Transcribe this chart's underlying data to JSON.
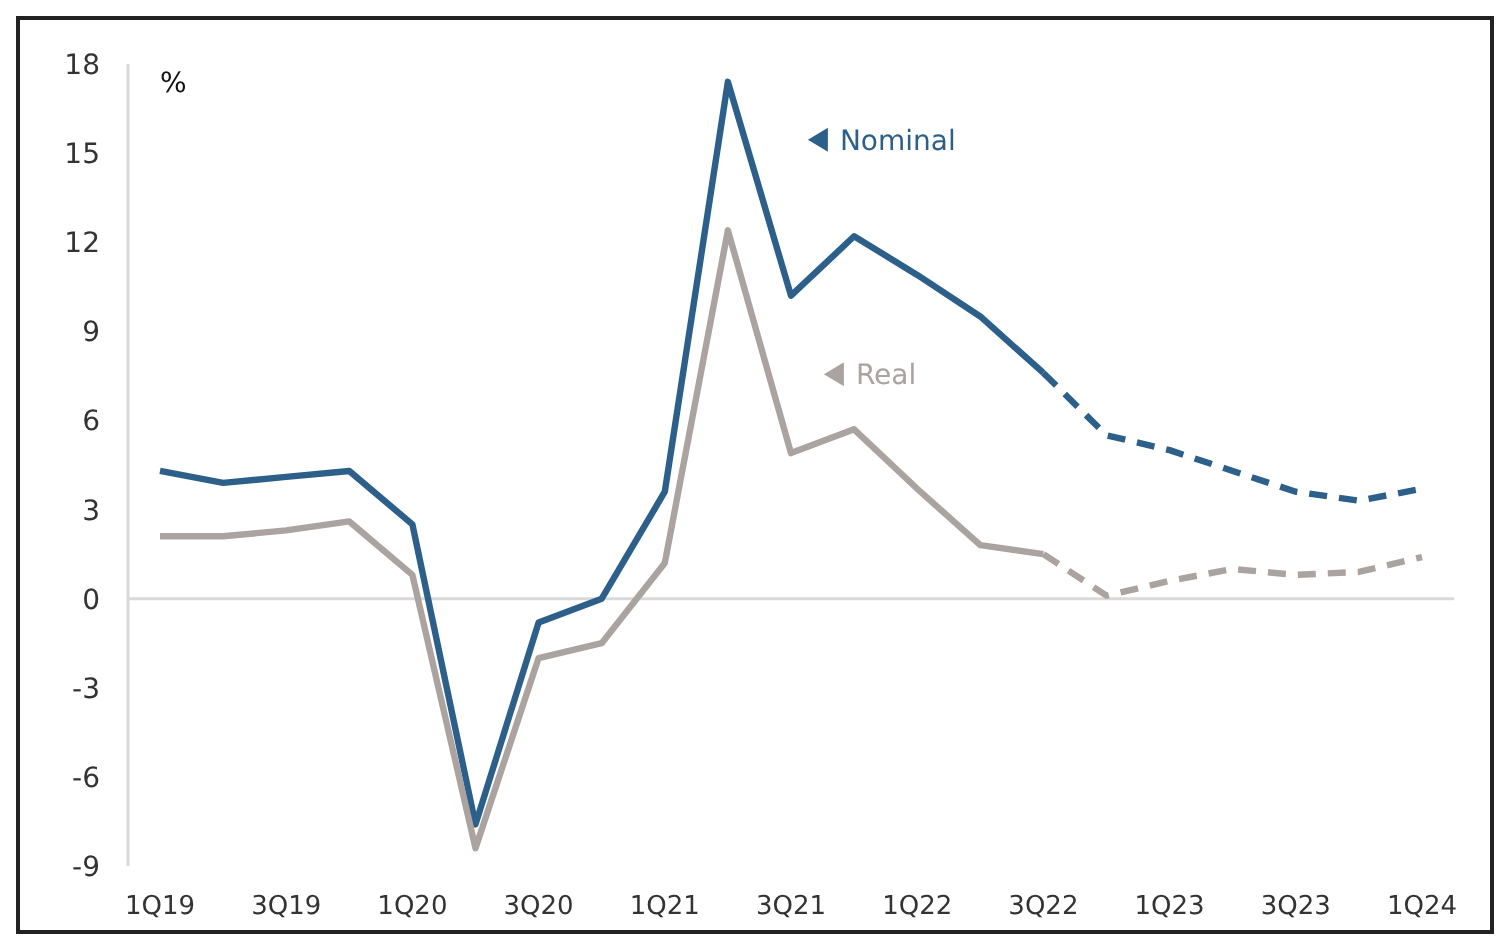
{
  "chart_data": {
    "type": "line",
    "ylabel": "%",
    "categories": [
      "1Q19",
      null,
      "3Q19",
      null,
      "1Q20",
      null,
      "3Q20",
      null,
      "1Q21",
      null,
      "3Q21",
      null,
      "1Q22",
      null,
      "3Q22",
      null,
      "1Q23",
      null,
      "3Q23",
      null,
      "1Q24"
    ],
    "series": [
      {
        "name": "Nominal",
        "color": "#2c5f8a",
        "line_style": "solid",
        "values": [
          4.3,
          3.9,
          4.1,
          4.3,
          2.5,
          -7.6,
          -0.8,
          0,
          3.6,
          17.4,
          10.2,
          12.2,
          10.9,
          9.5,
          7.6,
          null,
          null,
          null,
          null,
          null,
          null
        ]
      },
      {
        "color": "#2c5f8a",
        "line_style": "dashed",
        "values": [
          null,
          null,
          null,
          null,
          null,
          null,
          null,
          null,
          null,
          null,
          null,
          null,
          null,
          null,
          7.6,
          5.5,
          5.0,
          4.3,
          3.6,
          3.3,
          3.7
        ]
      },
      {
        "name": "Real",
        "color": "#aaa39f",
        "line_style": "solid",
        "values": [
          2.1,
          2.1,
          2.3,
          2.6,
          0.8,
          -8.4,
          -2.0,
          -1.5,
          1.2,
          12.4,
          4.9,
          5.7,
          3.7,
          1.8,
          1.5,
          null,
          null,
          null,
          null,
          null,
          null
        ]
      },
      {
        "color": "#aaa39f",
        "line_style": "dashed",
        "values": [
          null,
          null,
          null,
          null,
          null,
          null,
          null,
          null,
          null,
          null,
          null,
          null,
          null,
          null,
          1.5,
          0.1,
          0.6,
          1.0,
          0.8,
          0.9,
          1.4
        ]
      }
    ],
    "ylim": [
      -9,
      18
    ],
    "yticks": [
      -9,
      -6,
      -3,
      0,
      3,
      6,
      9,
      12,
      15,
      18
    ],
    "ref_lines": [
      {
        "axis": "y",
        "value": 0,
        "color": "#d9d9d9"
      }
    ],
    "grid": false,
    "legend": "top",
    "marker": "none"
  }
}
